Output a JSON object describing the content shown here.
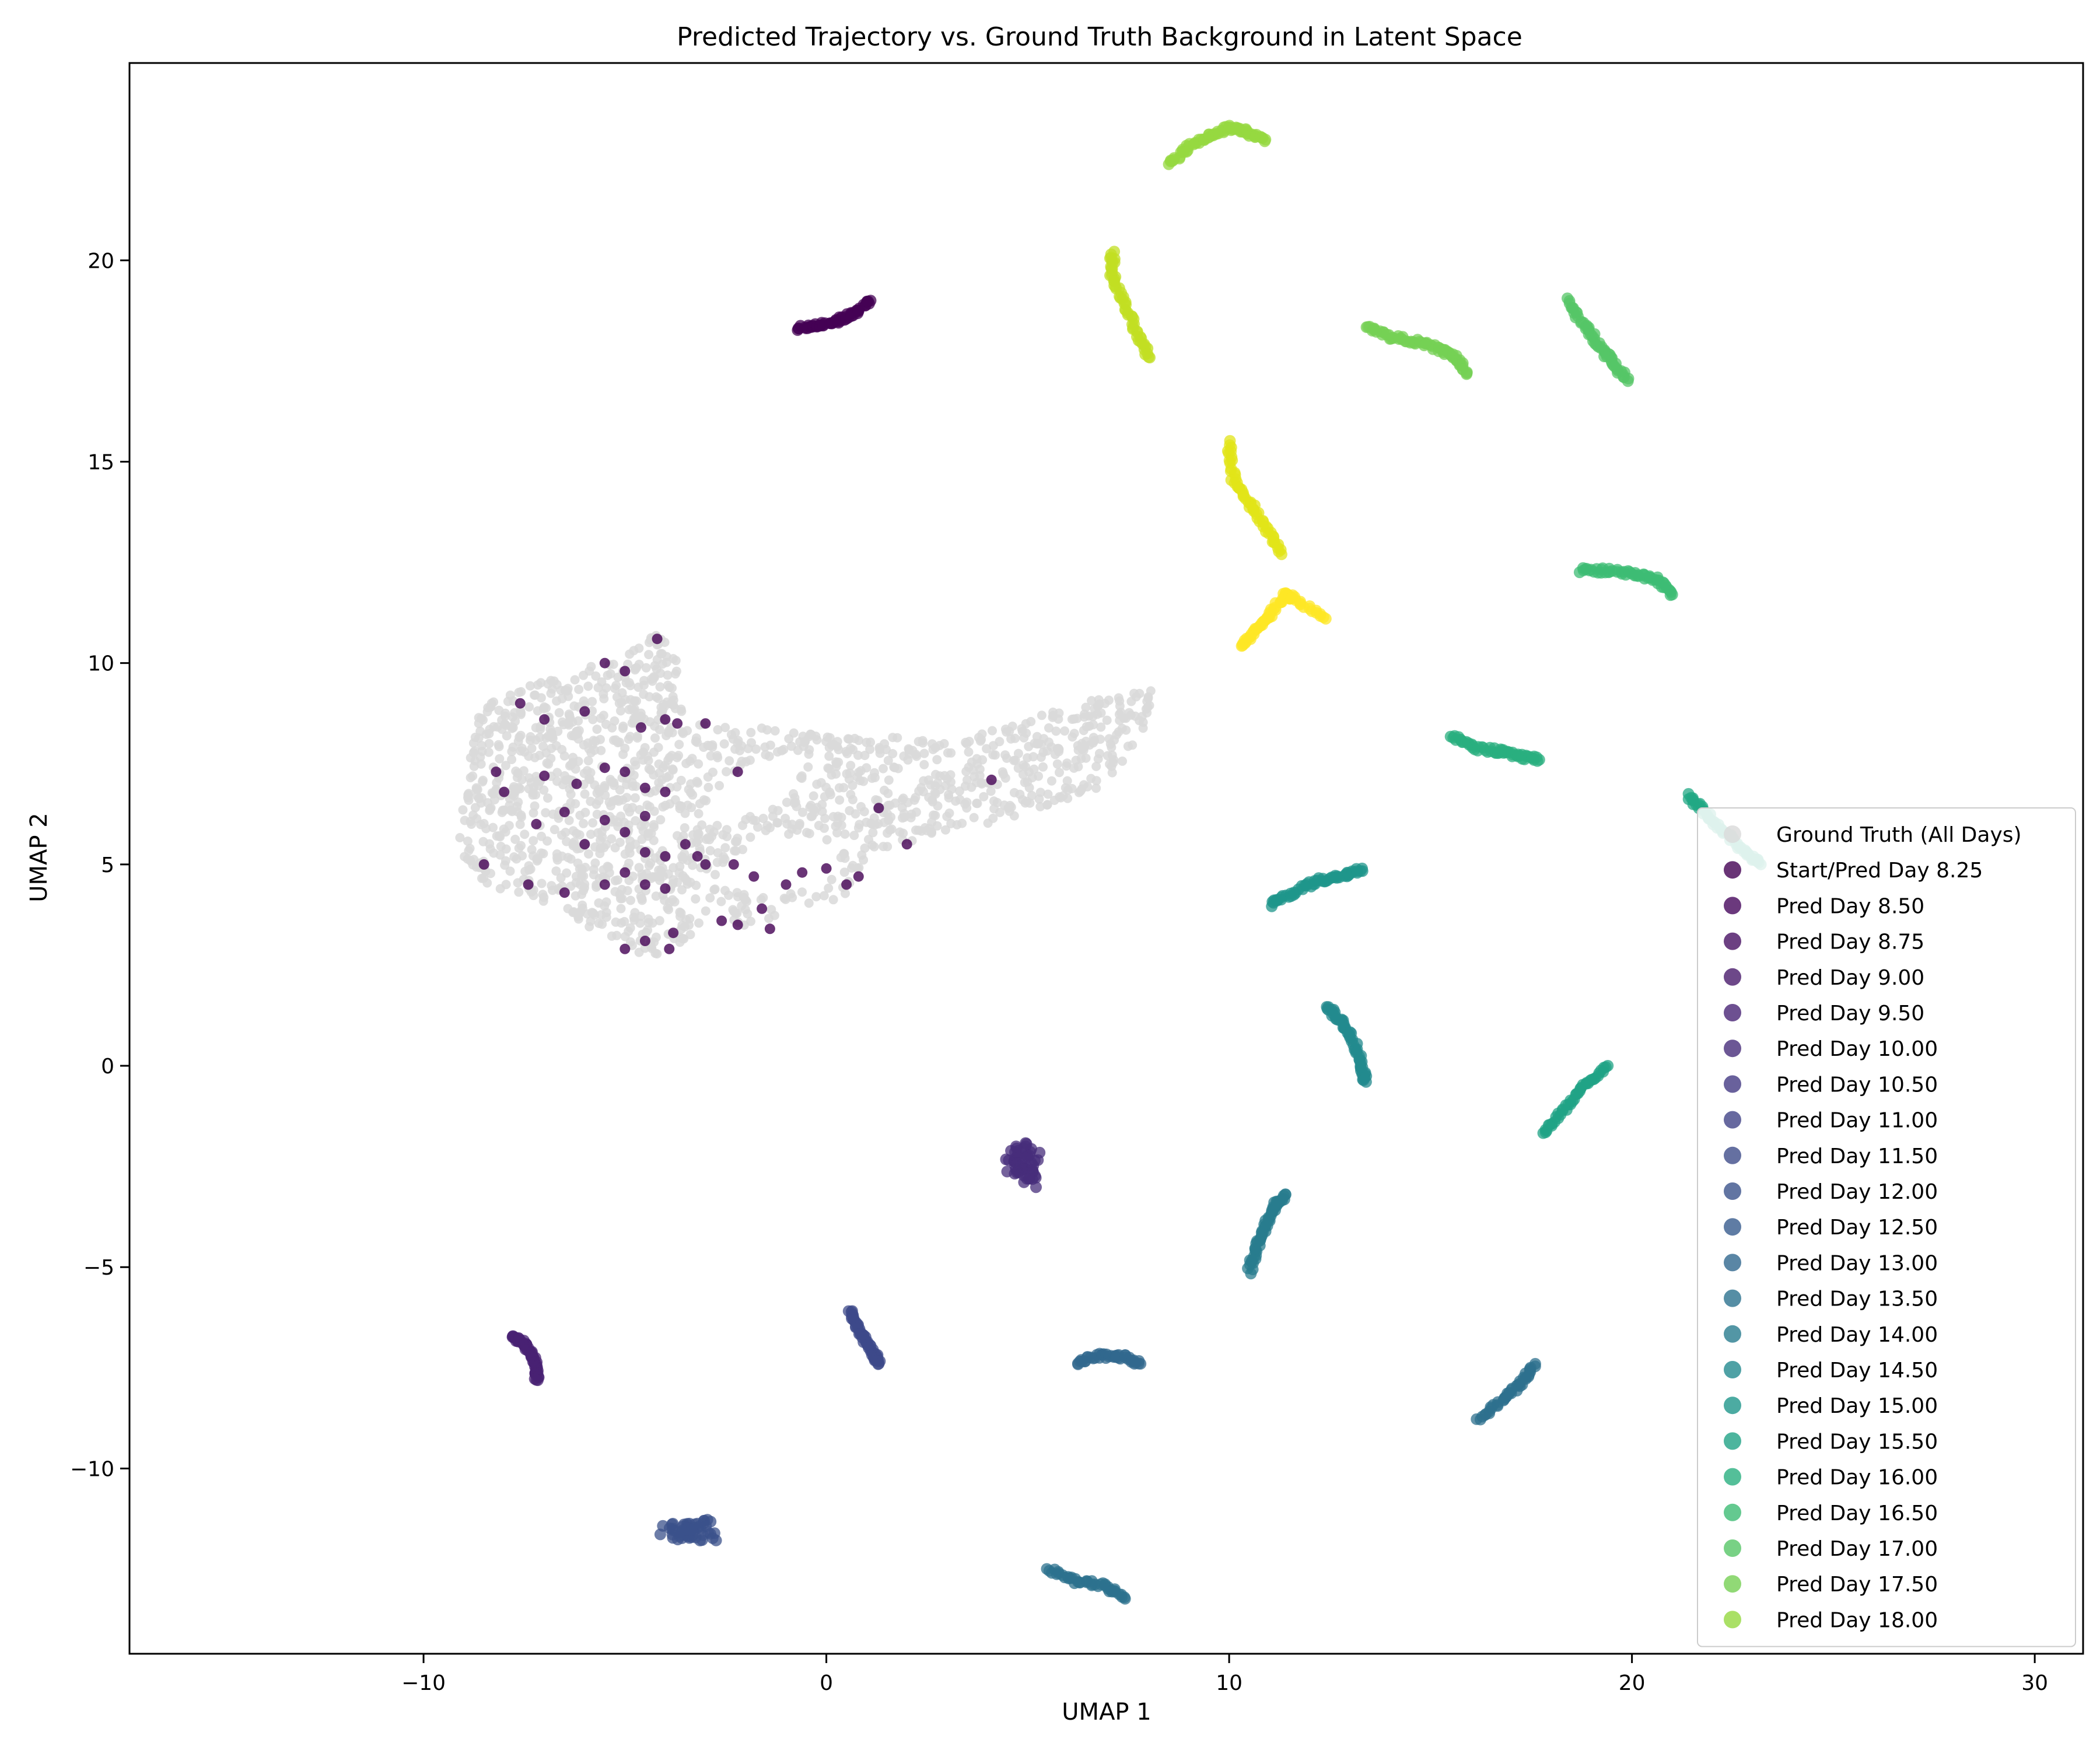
{
  "chart_data": {
    "type": "scatter",
    "title": "Predicted Trajectory vs. Ground Truth Background in Latent Space",
    "xlabel": "UMAP 1",
    "ylabel": "UMAP 2",
    "xlim": [
      -17.3,
      31.2
    ],
    "ylim": [
      -14.6,
      24.9
    ],
    "xticks": [
      -10,
      0,
      10,
      20,
      30
    ],
    "yticks": [
      -10,
      -5,
      0,
      5,
      10,
      15,
      20
    ],
    "xtick_labels": [
      "−10",
      "0",
      "10",
      "20",
      "30"
    ],
    "ytick_labels": [
      "−10",
      "−5",
      "0",
      "5",
      "10",
      "15",
      "20"
    ],
    "grid": false,
    "legend_position": "lower-right",
    "background": {
      "name": "Ground Truth (All Days)",
      "color": "#d9d9d9",
      "outline": [
        [
          -9,
          6.5
        ],
        [
          -8.8,
          8.6
        ],
        [
          -8,
          9.3
        ],
        [
          -6.5,
          9.7
        ],
        [
          -5,
          10.2
        ],
        [
          -4.2,
          10.8
        ],
        [
          -3.6,
          10
        ],
        [
          -3.8,
          9
        ],
        [
          -3,
          8.6
        ],
        [
          -1,
          8.3
        ],
        [
          1.5,
          8.2
        ],
        [
          3,
          8
        ],
        [
          5,
          8.6
        ],
        [
          7,
          9.2
        ],
        [
          8.2,
          9.5
        ],
        [
          7.8,
          8
        ],
        [
          7,
          7
        ],
        [
          5,
          6.2
        ],
        [
          3,
          5.8
        ],
        [
          1,
          5.2
        ],
        [
          0.5,
          4.2
        ],
        [
          -1,
          3.8
        ],
        [
          -2,
          3.4
        ],
        [
          -3,
          3.8
        ],
        [
          -3.5,
          3
        ],
        [
          -4.5,
          2.6
        ],
        [
          -5.5,
          3.2
        ],
        [
          -6.5,
          3.8
        ],
        [
          -8.5,
          4.5
        ],
        [
          -9.2,
          5.5
        ]
      ],
      "holes": [
        [
          [
            -3,
            4.5
          ],
          [
            -1.5,
            5.8
          ],
          [
            0.5,
            5.5
          ],
          [
            0,
            4.5
          ],
          [
            -1.5,
            4.2
          ]
        ],
        [
          [
            -3.4,
            6
          ],
          [
            -2,
            7.5
          ],
          [
            -0.5,
            7.8
          ],
          [
            -1,
            6.5
          ],
          [
            -2.5,
            6
          ]
        ]
      ]
    },
    "series": [
      {
        "name": "Start/Pred Day 8.25",
        "color": "#440154",
        "scatter_in_bg": true,
        "points": [
          [
            -8.2,
            7.3
          ],
          [
            -7.6,
            9
          ],
          [
            -7,
            8.6
          ],
          [
            -6.5,
            6.3
          ],
          [
            -6,
            8.8
          ],
          [
            -5.5,
            10
          ],
          [
            -5,
            9.8
          ],
          [
            -4.6,
            8.4
          ],
          [
            -4.2,
            10.6
          ],
          [
            -4,
            8.6
          ],
          [
            -3.7,
            8.5
          ],
          [
            -3,
            8.5
          ],
          [
            -5.5,
            7.4
          ],
          [
            -5,
            7.3
          ],
          [
            -4.5,
            6.9
          ],
          [
            -4,
            6.8
          ],
          [
            -4.5,
            6.2
          ],
          [
            -3.5,
            5.5
          ],
          [
            -3.2,
            5.2
          ],
          [
            -3,
            5
          ],
          [
            -5.5,
            6.1
          ],
          [
            -5,
            5.8
          ],
          [
            -4.5,
            5.3
          ],
          [
            -4,
            5.2
          ],
          [
            -6,
            5.5
          ],
          [
            -6.5,
            4.3
          ],
          [
            -5.5,
            4.5
          ],
          [
            -5,
            4.8
          ],
          [
            -4.5,
            4.5
          ],
          [
            -4,
            4.4
          ],
          [
            -3.8,
            3.3
          ],
          [
            -4.5,
            3.1
          ],
          [
            -5,
            2.9
          ],
          [
            -3.9,
            2.9
          ],
          [
            -2.6,
            3.6
          ],
          [
            -2.2,
            3.5
          ],
          [
            -1.4,
            3.4
          ],
          [
            -1,
            4.5
          ],
          [
            -0.6,
            4.8
          ],
          [
            0,
            4.9
          ],
          [
            0.5,
            4.5
          ],
          [
            0.8,
            4.7
          ],
          [
            -1.8,
            4.7
          ],
          [
            -2.3,
            5
          ],
          [
            -1.6,
            3.9
          ],
          [
            2,
            5.5
          ],
          [
            1.3,
            6.4
          ],
          [
            4.1,
            7.1
          ],
          [
            -8.5,
            5
          ],
          [
            -7.4,
            4.5
          ],
          [
            -7,
            7.2
          ],
          [
            -8,
            6.8
          ],
          [
            -7.2,
            6
          ],
          [
            -6.2,
            7
          ],
          [
            -2.2,
            7.3
          ]
        ]
      },
      {
        "name": "Start/Pred Day 8.25",
        "color": "#440154",
        "points": [
          [
            -0.7,
            18.3
          ],
          [
            -0.2,
            18.4
          ],
          [
            0.3,
            18.5
          ],
          [
            0.7,
            18.7
          ],
          [
            1.1,
            19
          ]
        ]
      },
      {
        "name": "Pred Day 8.50",
        "color": "#472d7b",
        "blob": true,
        "points": [
          [
            4.5,
            -2.2
          ],
          [
            4.9,
            -2
          ],
          [
            5.3,
            -2.3
          ],
          [
            5,
            -2.7
          ],
          [
            4.6,
            -2.5
          ],
          [
            5.1,
            -2.9
          ]
        ]
      },
      {
        "name": "Pred Day 8.75",
        "color": "#482173",
        "points": [
          [
            -7.8,
            -6.7
          ],
          [
            -7.5,
            -6.9
          ],
          [
            -7.3,
            -7.2
          ],
          [
            -7.2,
            -7.5
          ],
          [
            -7.2,
            -7.8
          ]
        ]
      },
      {
        "name": "Pred Day 9.50",
        "color": "#3b528b",
        "blob": true,
        "points": [
          [
            -4,
            -11.5
          ],
          [
            -3.5,
            -11.7
          ],
          [
            -3,
            -11.4
          ],
          [
            -2.8,
            -11.7
          ],
          [
            -3.4,
            -11.5
          ]
        ]
      },
      {
        "name": "Pred Day 10.00",
        "color": "#3e4989",
        "points": [
          [
            0.6,
            -6.1
          ],
          [
            0.8,
            -6.5
          ],
          [
            1,
            -6.9
          ],
          [
            1.2,
            -7.2
          ],
          [
            1.3,
            -7.4
          ]
        ]
      },
      {
        "name": "Pred Day 10.50",
        "color": "#31688e",
        "points": [
          [
            6.2,
            -7.4
          ],
          [
            6.8,
            -7.2
          ],
          [
            7.3,
            -7.2
          ],
          [
            7.8,
            -7.4
          ]
        ]
      },
      {
        "name": "Pred Day 11.00",
        "color": "#2c728e",
        "points": [
          [
            5.5,
            -12.5
          ],
          [
            6.2,
            -12.8
          ],
          [
            6.9,
            -12.9
          ],
          [
            7.4,
            -13.2
          ]
        ]
      },
      {
        "name": "Pred Day 11.50",
        "color": "#2d708e",
        "points": [
          [
            16.2,
            -8.8
          ],
          [
            16.8,
            -8.3
          ],
          [
            17.2,
            -7.9
          ],
          [
            17.6,
            -7.4
          ]
        ]
      },
      {
        "name": "Pred Day 12.00",
        "color": "#287c8e",
        "points": [
          [
            10.5,
            -5.1
          ],
          [
            10.7,
            -4.5
          ],
          [
            10.9,
            -4.0
          ],
          [
            11.1,
            -3.5
          ],
          [
            11.4,
            -3.2
          ]
        ]
      },
      {
        "name": "Pred Day 12.50",
        "color": "#23898e",
        "points": [
          [
            12.4,
            1.5
          ],
          [
            12.8,
            1.1
          ],
          [
            13.1,
            0.6
          ],
          [
            13.3,
            0
          ],
          [
            13.4,
            -0.4
          ]
        ]
      },
      {
        "name": "Pred Day 13.00",
        "color": "#1f968b",
        "points": [
          [
            11.0,
            4.0
          ],
          [
            11.6,
            4.3
          ],
          [
            12.2,
            4.6
          ],
          [
            12.8,
            4.7
          ],
          [
            13.3,
            4.9
          ]
        ]
      },
      {
        "name": "Pred Day 13.50",
        "color": "#20a386",
        "points": [
          [
            17.8,
            -1.7
          ],
          [
            18.3,
            -1.1
          ],
          [
            18.8,
            -0.5
          ],
          [
            19.4,
            0
          ]
        ]
      },
      {
        "name": "Pred Day 14.00",
        "color": "#29af7f",
        "points": [
          [
            15.5,
            8.2
          ],
          [
            16.1,
            7.9
          ],
          [
            16.7,
            7.8
          ],
          [
            17.2,
            7.7
          ],
          [
            17.7,
            7.6
          ]
        ]
      },
      {
        "name": "Pred Day 14.50",
        "color": "#22a884",
        "points": [
          [
            21.4,
            6.7
          ],
          [
            21.8,
            6.3
          ],
          [
            22.3,
            5.8
          ],
          [
            22.8,
            5.3
          ],
          [
            23.2,
            5.0
          ]
        ]
      },
      {
        "name": "Pred Day 15.00",
        "color": "#3dbc74",
        "points": [
          [
            18.7,
            12.3
          ],
          [
            19.4,
            12.3
          ],
          [
            20.1,
            12.2
          ],
          [
            20.6,
            12.1
          ],
          [
            21.0,
            11.7
          ]
        ]
      },
      {
        "name": "Pred Day 15.50",
        "color": "#56c667",
        "points": [
          [
            18.4,
            19
          ],
          [
            18.8,
            18.4
          ],
          [
            19.2,
            17.9
          ],
          [
            19.5,
            17.5
          ],
          [
            19.9,
            17.0
          ]
        ]
      },
      {
        "name": "Pred Day 16.00",
        "color": "#75d054",
        "points": [
          [
            13.4,
            18.4
          ],
          [
            14.0,
            18.1
          ],
          [
            14.6,
            18.0
          ],
          [
            15.2,
            17.8
          ],
          [
            15.6,
            17.6
          ],
          [
            15.9,
            17.2
          ]
        ]
      },
      {
        "name": "Pred Day 16.50",
        "color": "#95d840",
        "points": [
          [
            8.5,
            22.4
          ],
          [
            9.0,
            22.8
          ],
          [
            9.5,
            23.1
          ],
          [
            10.0,
            23.3
          ],
          [
            10.4,
            23.2
          ],
          [
            10.9,
            23.0
          ]
        ]
      },
      {
        "name": "Pred Day 17.00",
        "color": "#c2df23",
        "points": [
          [
            7.1,
            20.2
          ],
          [
            7.1,
            19.6
          ],
          [
            7.4,
            18.9
          ],
          [
            7.7,
            18.2
          ],
          [
            8.0,
            17.6
          ]
        ]
      },
      {
        "name": "Pred Day 17.50",
        "color": "#e2e418",
        "points": [
          [
            10.0,
            15.5
          ],
          [
            10.1,
            14.6
          ],
          [
            10.5,
            14.0
          ],
          [
            10.9,
            13.4
          ],
          [
            11.3,
            12.7
          ]
        ]
      },
      {
        "name": "Pred Day 18.00",
        "color": "#fde725",
        "points": [
          [
            10.3,
            10.4
          ],
          [
            10.7,
            10.8
          ],
          [
            11.0,
            11.2
          ],
          [
            11.4,
            11.7
          ],
          [
            11.6,
            11.6
          ],
          [
            12.4,
            11.1
          ]
        ]
      }
    ],
    "legend": [
      {
        "label": "Ground Truth (All Days)",
        "color": "#d9d9d9"
      },
      {
        "label": "Start/Pred Day 8.25",
        "color": "#440154"
      },
      {
        "label": "Pred Day 8.50",
        "color": "#46085c"
      },
      {
        "label": "Pred Day 8.75",
        "color": "#471063"
      },
      {
        "label": "Pred Day 9.00",
        "color": "#481a6c"
      },
      {
        "label": "Pred Day 9.50",
        "color": "#482475"
      },
      {
        "label": "Pred Day 10.00",
        "color": "#472d7b"
      },
      {
        "label": "Pred Day 10.50",
        "color": "#443983"
      },
      {
        "label": "Pred Day 11.00",
        "color": "#414487"
      },
      {
        "label": "Pred Day 11.50",
        "color": "#3e4c8a"
      },
      {
        "label": "Pred Day 12.00",
        "color": "#3b528b"
      },
      {
        "label": "Pred Day 12.50",
        "color": "#375b8d"
      },
      {
        "label": "Pred Day 13.00",
        "color": "#31688e"
      },
      {
        "label": "Pred Day 13.50",
        "color": "#2c728e"
      },
      {
        "label": "Pred Day 14.00",
        "color": "#287c8e"
      },
      {
        "label": "Pred Day 14.50",
        "color": "#23898e"
      },
      {
        "label": "Pred Day 15.00",
        "color": "#1f968b"
      },
      {
        "label": "Pred Day 15.50",
        "color": "#20a386"
      },
      {
        "label": "Pred Day 16.00",
        "color": "#29af7f"
      },
      {
        "label": "Pred Day 16.50",
        "color": "#3dbc74"
      },
      {
        "label": "Pred Day 17.00",
        "color": "#56c667"
      },
      {
        "label": "Pred Day 17.50",
        "color": "#75d054"
      },
      {
        "label": "Pred Day 18.00",
        "color": "#95d840"
      }
    ]
  }
}
